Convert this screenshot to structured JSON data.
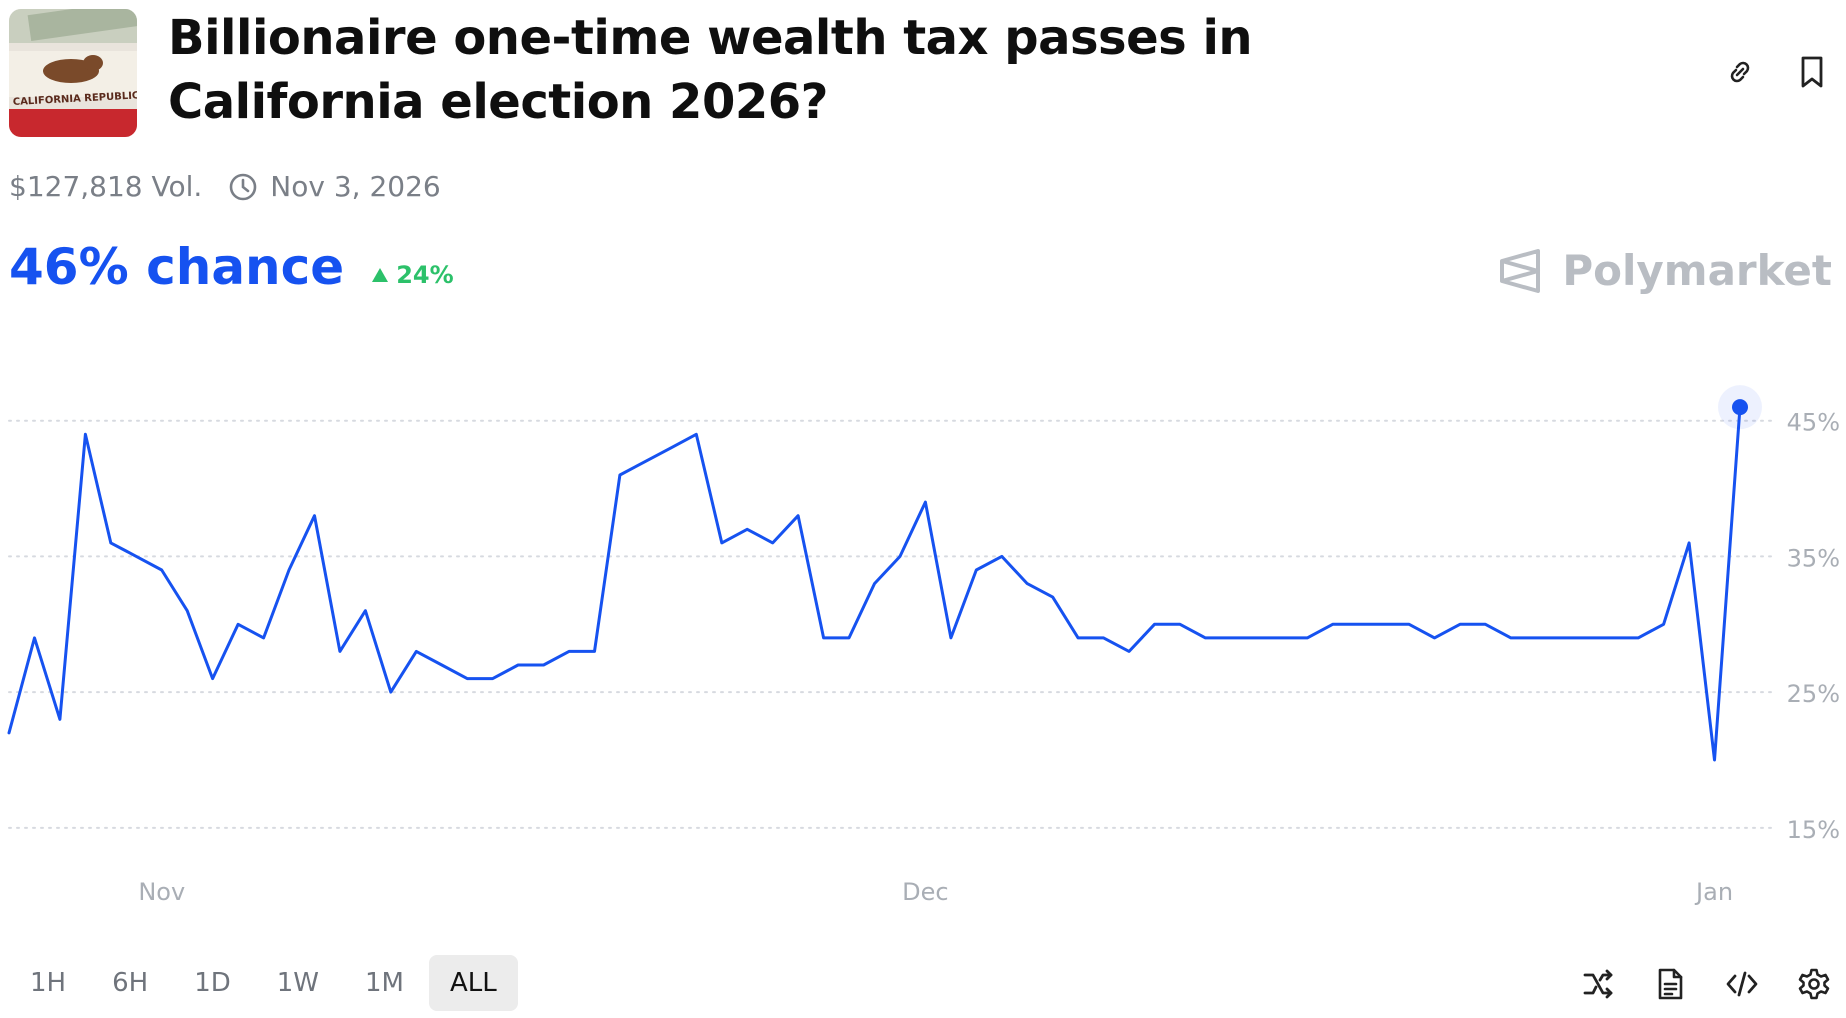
{
  "market": {
    "title": "Billionaire one-time wealth tax passes in California election 2026?",
    "thumbnail_text": "CALIFORNIA REPUBLIC",
    "volume": "$127,818 Vol.",
    "end_date": "Nov 3, 2026",
    "chance": "46% chance",
    "change": "24%",
    "brand": "Polymarket"
  },
  "icons": {
    "link": "link-icon",
    "bookmark": "bookmark-icon",
    "clock": "clock-icon",
    "up": "triangle-up-icon",
    "shuffle": "shuffle-icon",
    "document": "document-icon",
    "embed": "code-icon",
    "settings": "gear-icon"
  },
  "range_buttons": [
    "1H",
    "6H",
    "1D",
    "1W",
    "1M",
    "ALL"
  ],
  "active_range": "ALL",
  "colors": {
    "line": "#1652f0",
    "up": "#2cc16a",
    "grid": "#d7dae0",
    "axis_text": "#a9aeb5"
  },
  "chart_data": {
    "type": "line",
    "title": "",
    "xlabel": "",
    "ylabel": "",
    "x_ticks": [
      "Nov",
      "Dec",
      "Jan"
    ],
    "y_ticks": [
      "15%",
      "25%",
      "35%",
      "45%"
    ],
    "y_tick_values": [
      15,
      25,
      35,
      45
    ],
    "ylim": [
      13,
      48
    ],
    "grid": true,
    "series": [
      {
        "x": [
          "2025-10-26",
          "2025-10-27",
          "2025-10-28",
          "2025-10-29",
          "2025-10-30",
          "2025-10-31",
          "2025-11-01",
          "2025-11-02",
          "2025-11-03",
          "2025-11-04",
          "2025-11-05",
          "2025-11-06",
          "2025-11-07",
          "2025-11-08",
          "2025-11-09",
          "2025-11-10",
          "2025-11-11",
          "2025-11-12",
          "2025-11-13",
          "2025-11-14",
          "2025-11-15",
          "2025-11-16",
          "2025-11-17",
          "2025-11-18",
          "2025-11-19",
          "2025-11-20",
          "2025-11-21",
          "2025-11-22",
          "2025-11-23",
          "2025-11-24",
          "2025-11-25",
          "2025-11-26",
          "2025-11-27",
          "2025-11-28",
          "2025-11-29",
          "2025-11-30",
          "2025-12-01",
          "2025-12-02",
          "2025-12-03",
          "2025-12-04",
          "2025-12-05",
          "2025-12-06",
          "2025-12-07",
          "2025-12-08",
          "2025-12-09",
          "2025-12-10",
          "2025-12-11",
          "2025-12-12",
          "2025-12-13",
          "2025-12-14",
          "2025-12-15",
          "2025-12-16",
          "2025-12-17",
          "2025-12-18",
          "2025-12-19",
          "2025-12-20",
          "2025-12-21",
          "2025-12-22",
          "2025-12-23",
          "2025-12-24",
          "2025-12-25",
          "2025-12-26",
          "2025-12-27",
          "2025-12-28",
          "2025-12-29",
          "2025-12-30",
          "2025-12-31",
          "2026-01-01",
          "2026-01-02"
        ],
        "values": [
          22,
          29,
          23,
          44,
          36,
          35,
          34,
          31,
          26,
          30,
          29,
          34,
          38,
          28,
          31,
          25,
          28,
          27,
          26,
          26,
          27,
          27,
          28,
          28,
          41,
          42,
          43,
          44,
          36,
          37,
          36,
          38,
          29,
          29,
          33,
          35,
          39,
          29,
          34,
          35,
          33,
          32,
          29,
          29,
          28,
          30,
          30,
          29,
          29,
          29,
          29,
          29,
          30,
          30,
          30,
          30,
          29,
          30,
          30,
          29,
          29,
          29,
          29,
          29,
          29,
          30,
          36,
          20,
          46
        ]
      }
    ]
  }
}
